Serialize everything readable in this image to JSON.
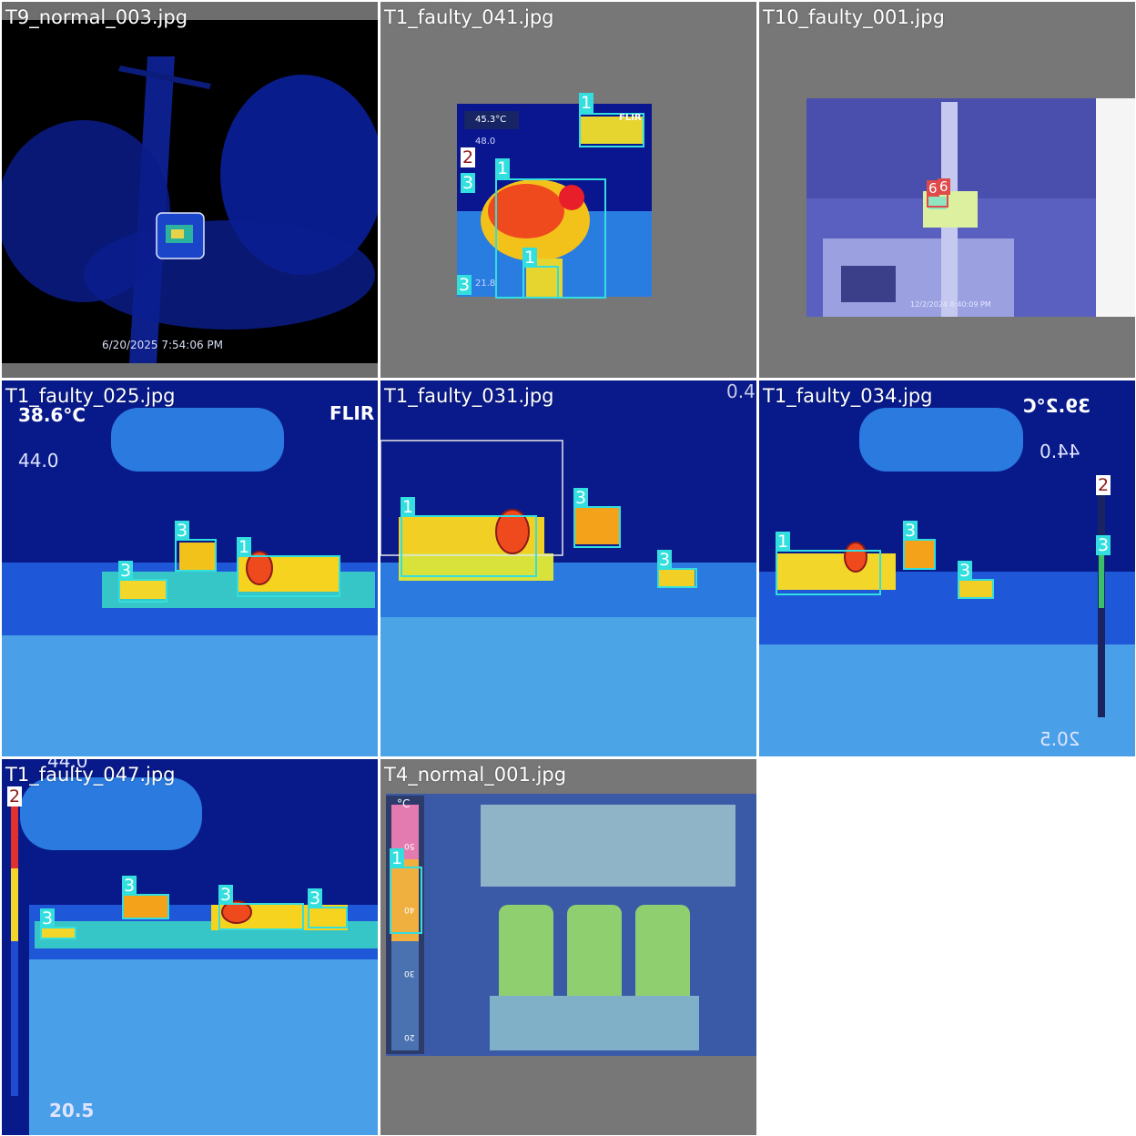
{
  "tiles": [
    {
      "filename": "T9_normal_003.jpg",
      "timestamp": "6/20/2025 7:54:06 PM"
    },
    {
      "filename": "T1_faulty_041.jpg",
      "temp": "45.3°C",
      "max": "48.0",
      "min": "21.8",
      "brand": "FLIR",
      "labels": [
        "1",
        "2",
        "3",
        "1",
        "1",
        "3"
      ]
    },
    {
      "filename": "T10_faulty_001.jpg",
      "timestamp": "12/2/2024 8:40:09 PM",
      "labels": [
        "6",
        "6"
      ]
    },
    {
      "filename": "T1_faulty_025.jpg",
      "temp": "38.6°C",
      "max": "44.0",
      "brand": "FLIR",
      "labels": [
        "3",
        "3",
        "1"
      ]
    },
    {
      "filename": "T1_faulty_031.jpg",
      "corner": "0.4",
      "labels": [
        "1",
        "3",
        "3"
      ]
    },
    {
      "filename": "T1_faulty_034.jpg",
      "temp": "39.2°C",
      "max": "44.0",
      "min": "20.5",
      "labels": [
        "2",
        "1",
        "3",
        "3",
        "3"
      ]
    },
    {
      "filename": "T1_faulty_047.jpg",
      "max": "44.0",
      "min": "20.5",
      "labels": [
        "2",
        "3",
        "3",
        "3",
        "3"
      ]
    },
    {
      "filename": "T4_normal_001.jpg",
      "unit": "°C",
      "scale": [
        "50",
        "40",
        "30",
        "20"
      ],
      "labels": [
        "1"
      ]
    }
  ],
  "colors": {
    "box": "#33dede",
    "box_alt": "#e04a4a",
    "title": "#ffffff"
  }
}
